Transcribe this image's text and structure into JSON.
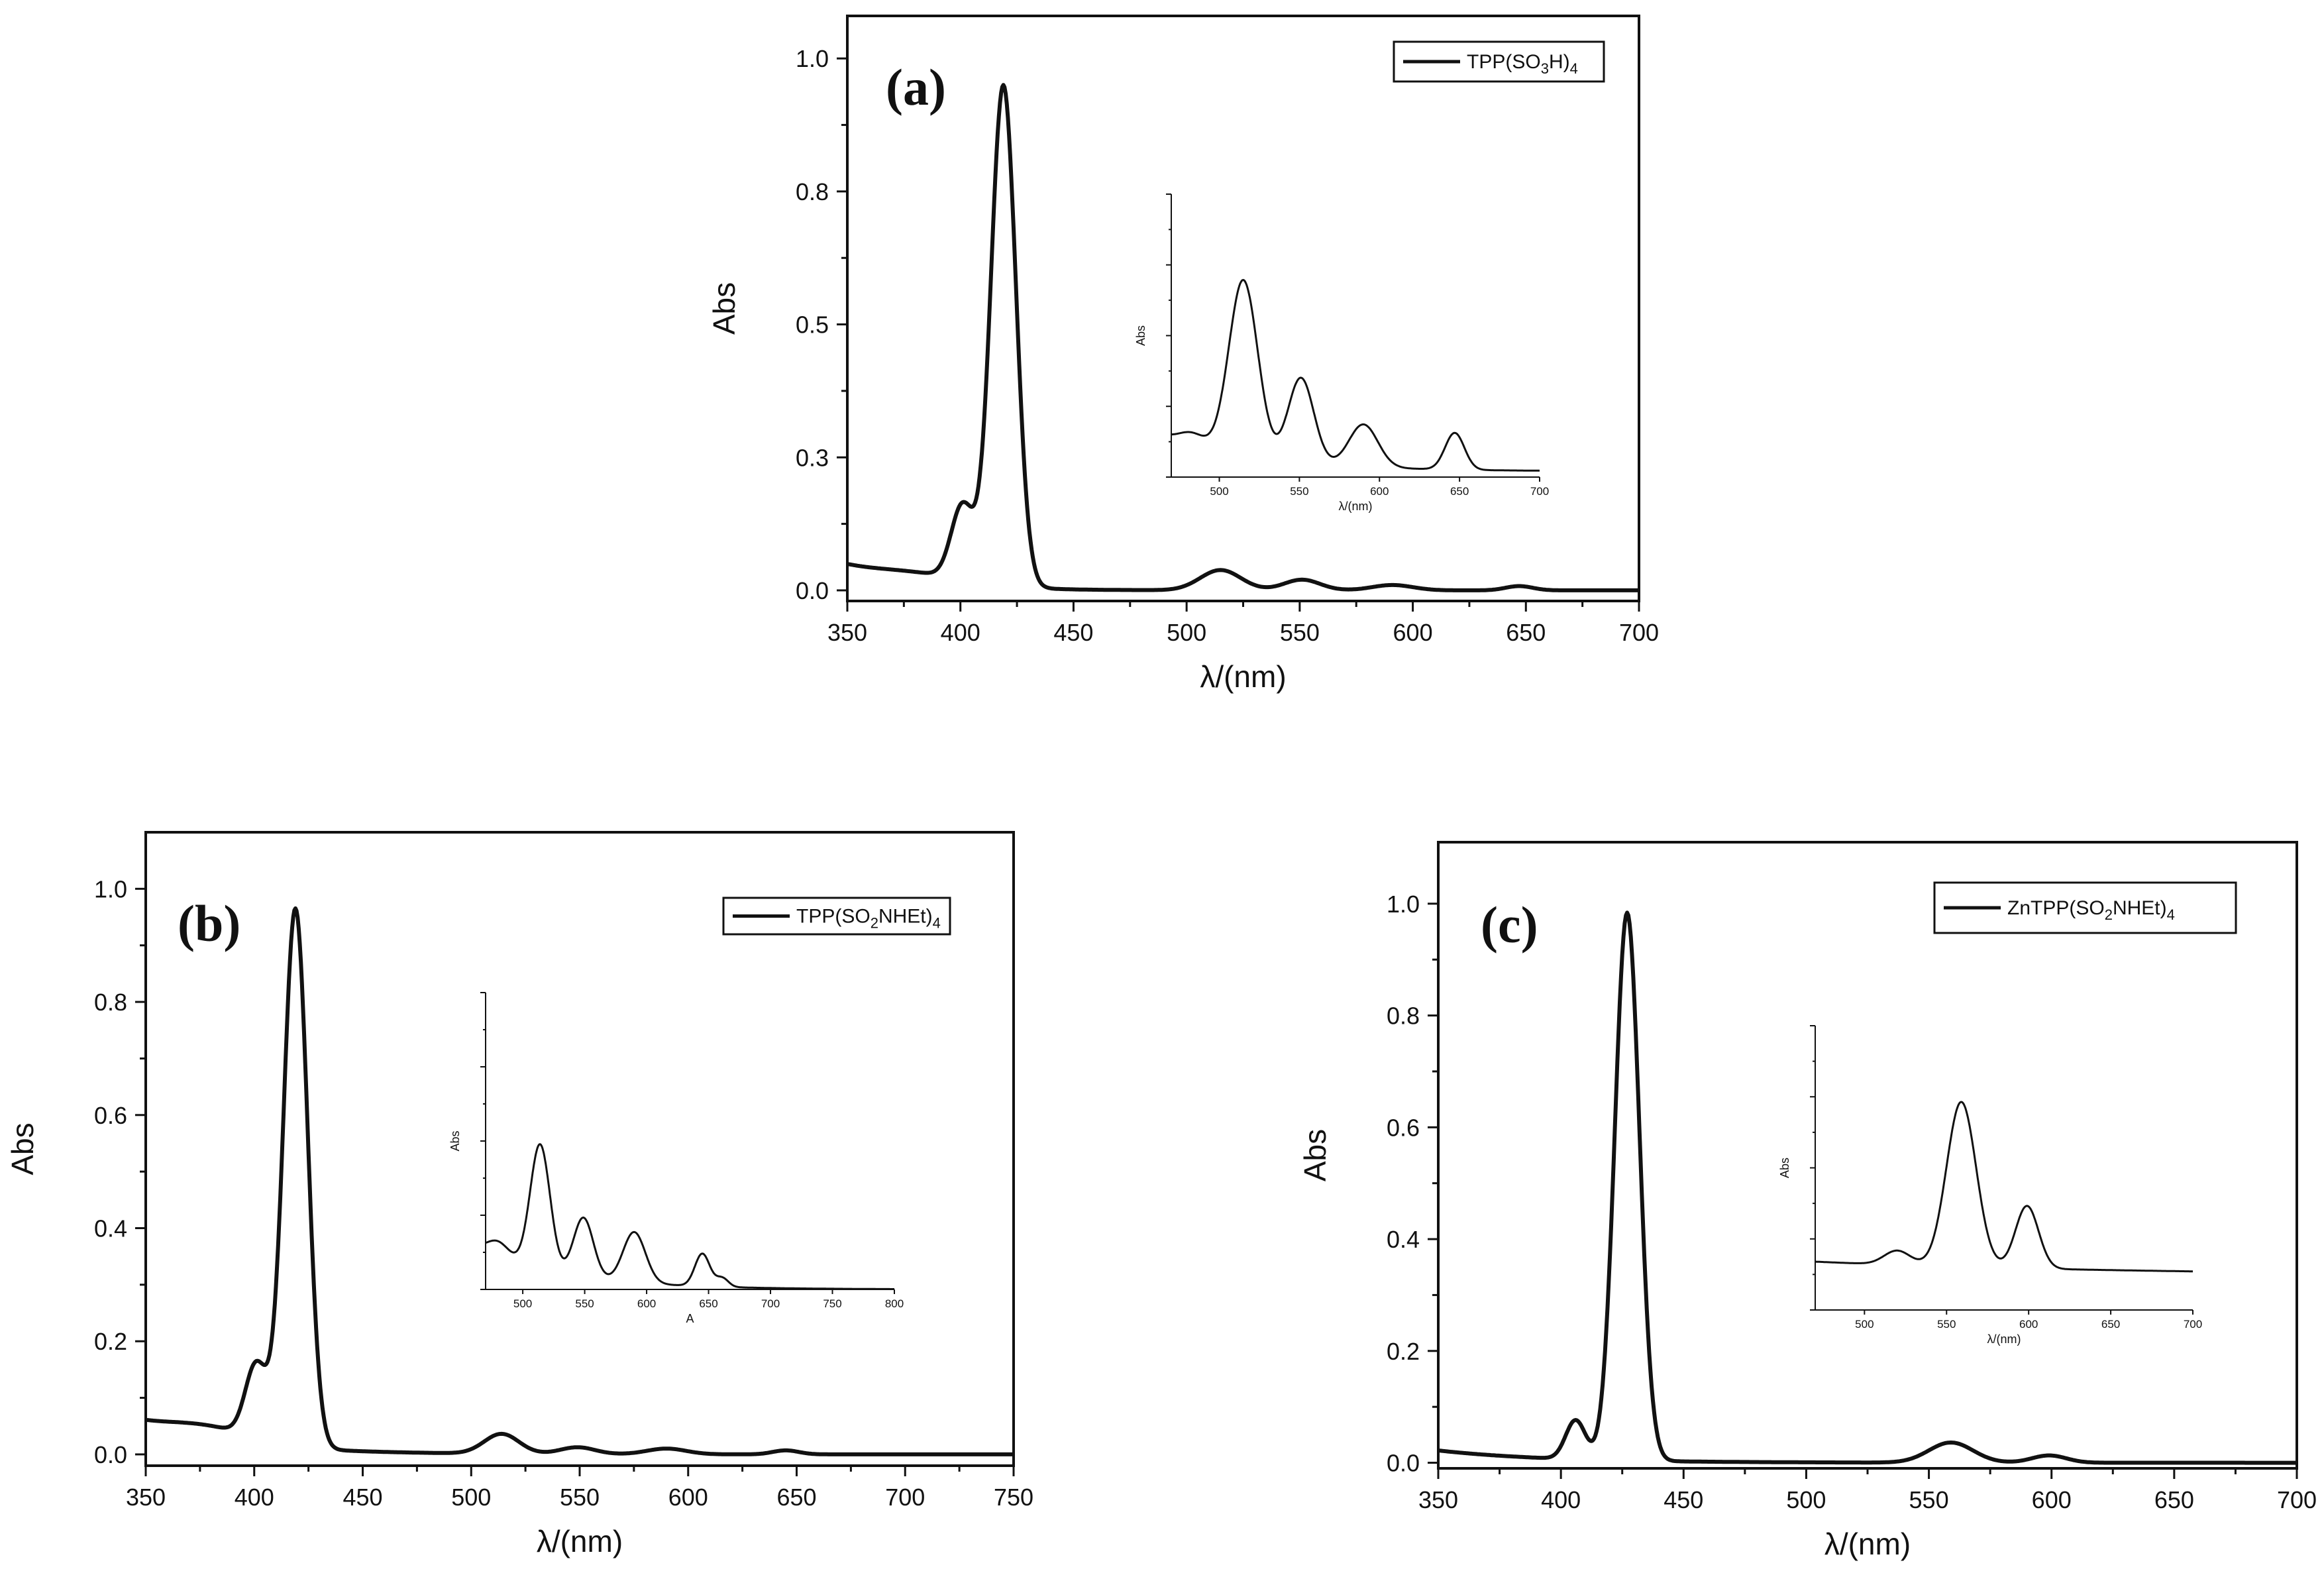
{
  "colors": {
    "line": "#111111",
    "background": "#ffffff",
    "axis": "#111111"
  },
  "chart_data": [
    {
      "type": "line",
      "panel_label": "(a)",
      "legend": "TPP(SO3H)4",
      "legend_main": "TPP(SO",
      "legend_sub1": "3",
      "legend_mid": "H)",
      "legend_sub2": "4",
      "xlabel": "λ/(nm)",
      "ylabel": "Abs",
      "xlim": [
        350,
        700
      ],
      "ylim": [
        -0.02,
        1.08
      ],
      "xticks": [
        350,
        400,
        450,
        500,
        550,
        600,
        650,
        700
      ],
      "xtick_labels": [
        "350",
        "400",
        "450",
        "500",
        "550",
        "600",
        "650",
        "700"
      ],
      "yticks": [
        0.0,
        0.25,
        0.5,
        0.75,
        1.0
      ],
      "ytick_labels": [
        "0.0",
        "0.3",
        "0.5",
        "0.8",
        "1.0"
      ],
      "series": [
        {
          "name": "TPP(SO3H)4",
          "peaks": [
            {
              "center": 419,
              "height": 0.94,
              "width": 5.5
            },
            {
              "center": 401,
              "height": 0.14,
              "width": 5
            },
            {
              "center": 380,
              "height": 0.02,
              "width": 25
            },
            {
              "center": 515,
              "height": 0.038,
              "width": 9
            },
            {
              "center": 551,
              "height": 0.02,
              "width": 8
            },
            {
              "center": 591,
              "height": 0.01,
              "width": 9
            },
            {
              "center": 647,
              "height": 0.008,
              "width": 6
            }
          ],
          "baseline": {
            "start": 0.04,
            "end": 0.0,
            "decay": 30
          }
        }
      ],
      "inset": {
        "xlabel": "λ/(nm)",
        "ylabel": "Abs",
        "xlim": [
          470,
          700
        ],
        "xticks": [
          500,
          550,
          600,
          650,
          700
        ],
        "xtick_labels": [
          "500",
          "550",
          "600",
          "650",
          "700"
        ],
        "ylim": [
          0,
          1
        ],
        "peaks": [
          {
            "center": 515,
            "height": 0.62,
            "width": 9
          },
          {
            "center": 551,
            "height": 0.3,
            "width": 8
          },
          {
            "center": 590,
            "height": 0.15,
            "width": 9
          },
          {
            "center": 647,
            "height": 0.13,
            "width": 6
          },
          {
            "center": 483,
            "height": 0.04,
            "width": 8
          }
        ],
        "baseline": {
          "start": 0.14,
          "end": 0.02,
          "decay": 60
        }
      }
    },
    {
      "type": "line",
      "panel_label": "(b)",
      "legend": "TPP(SO2NHEt)4",
      "legend_main": "TPP(SO",
      "legend_sub1": "2",
      "legend_mid": "NHEt)",
      "legend_sub2": "4",
      "xlabel": "λ/(nm)",
      "ylabel": "Abs",
      "xlim": [
        350,
        750
      ],
      "ylim": [
        -0.02,
        1.1
      ],
      "xticks": [
        350,
        400,
        450,
        500,
        550,
        600,
        650,
        700,
        750
      ],
      "xtick_labels": [
        "350",
        "400",
        "450",
        "500",
        "550",
        "600",
        "650",
        "700",
        "750"
      ],
      "yticks": [
        0.0,
        0.2,
        0.4,
        0.6,
        0.8,
        1.0
      ],
      "ytick_labels": [
        "0.0",
        "0.2",
        "0.4",
        "0.6",
        "0.8",
        "1.0"
      ],
      "series": [
        {
          "name": "TPP(SO2NHEt)4",
          "peaks": [
            {
              "center": 419,
              "height": 0.95,
              "width": 5.5
            },
            {
              "center": 401,
              "height": 0.13,
              "width": 5
            },
            {
              "center": 378,
              "height": 0.025,
              "width": 22
            },
            {
              "center": 514,
              "height": 0.035,
              "width": 8
            },
            {
              "center": 549,
              "height": 0.012,
              "width": 8
            },
            {
              "center": 590,
              "height": 0.01,
              "width": 9
            },
            {
              "center": 645,
              "height": 0.007,
              "width": 6
            }
          ],
          "baseline": {
            "start": 0.05,
            "end": 0.0,
            "decay": 45
          }
        }
      ],
      "inset": {
        "xlabel": "A",
        "ylabel": "Abs",
        "xlim": [
          470,
          800
        ],
        "xticks": [
          500,
          550,
          600,
          650,
          700,
          750,
          800
        ],
        "xtick_labels": [
          "500",
          "550",
          "600",
          "650",
          "700",
          "750",
          "800"
        ],
        "ylim": [
          0,
          1
        ],
        "peaks": [
          {
            "center": 514,
            "height": 0.42,
            "width": 8
          },
          {
            "center": 549,
            "height": 0.2,
            "width": 8
          },
          {
            "center": 590,
            "height": 0.17,
            "width": 9
          },
          {
            "center": 645,
            "height": 0.11,
            "width": 6
          },
          {
            "center": 480,
            "height": 0.05,
            "width": 9
          },
          {
            "center": 661,
            "height": 0.03,
            "width": 5
          }
        ],
        "baseline": {
          "start": 0.13,
          "end": 0.0,
          "decay": 70
        }
      }
    },
    {
      "type": "line",
      "panel_label": "(c)",
      "legend": "ZnTPP(SO2NHEt)4",
      "legend_main": "ZnTPP(SO",
      "legend_sub1": "2",
      "legend_mid": "NHEt)",
      "legend_sub2": "4",
      "xlabel": "λ/(nm)",
      "ylabel": "Abs",
      "xlim": [
        350,
        700
      ],
      "ylim": [
        -0.01,
        1.11
      ],
      "xticks": [
        350,
        400,
        450,
        500,
        550,
        600,
        650,
        700
      ],
      "xtick_labels": [
        "350",
        "400",
        "450",
        "500",
        "550",
        "600",
        "650",
        "700"
      ],
      "yticks": [
        0.0,
        0.2,
        0.4,
        0.6,
        0.8,
        1.0
      ],
      "ytick_labels": [
        "0.0",
        "0.2",
        "0.4",
        "0.6",
        "0.8",
        "1.0"
      ],
      "series": [
        {
          "name": "ZnTPP(SO2NHEt)4",
          "peaks": [
            {
              "center": 427,
              "height": 0.98,
              "width": 5
            },
            {
              "center": 406,
              "height": 0.07,
              "width": 4
            },
            {
              "center": 559,
              "height": 0.036,
              "width": 9
            },
            {
              "center": 599,
              "height": 0.013,
              "width": 7
            }
          ],
          "baseline": {
            "start": 0.022,
            "end": 0.0,
            "decay": 45
          }
        }
      ],
      "inset": {
        "xlabel": "λ/(nm)",
        "ylabel": "Abs",
        "xlim": [
          470,
          700
        ],
        "xticks": [
          500,
          550,
          600,
          650,
          700
        ],
        "xtick_labels": [
          "500",
          "550",
          "600",
          "650",
          "700"
        ],
        "ylim": [
          0,
          1
        ],
        "peaks": [
          {
            "center": 559,
            "height": 0.58,
            "width": 9
          },
          {
            "center": 599,
            "height": 0.22,
            "width": 7
          },
          {
            "center": 520,
            "height": 0.05,
            "width": 8
          }
        ],
        "baseline": {
          "start": 0.17,
          "end": 0.12,
          "decay": 200
        }
      }
    }
  ]
}
